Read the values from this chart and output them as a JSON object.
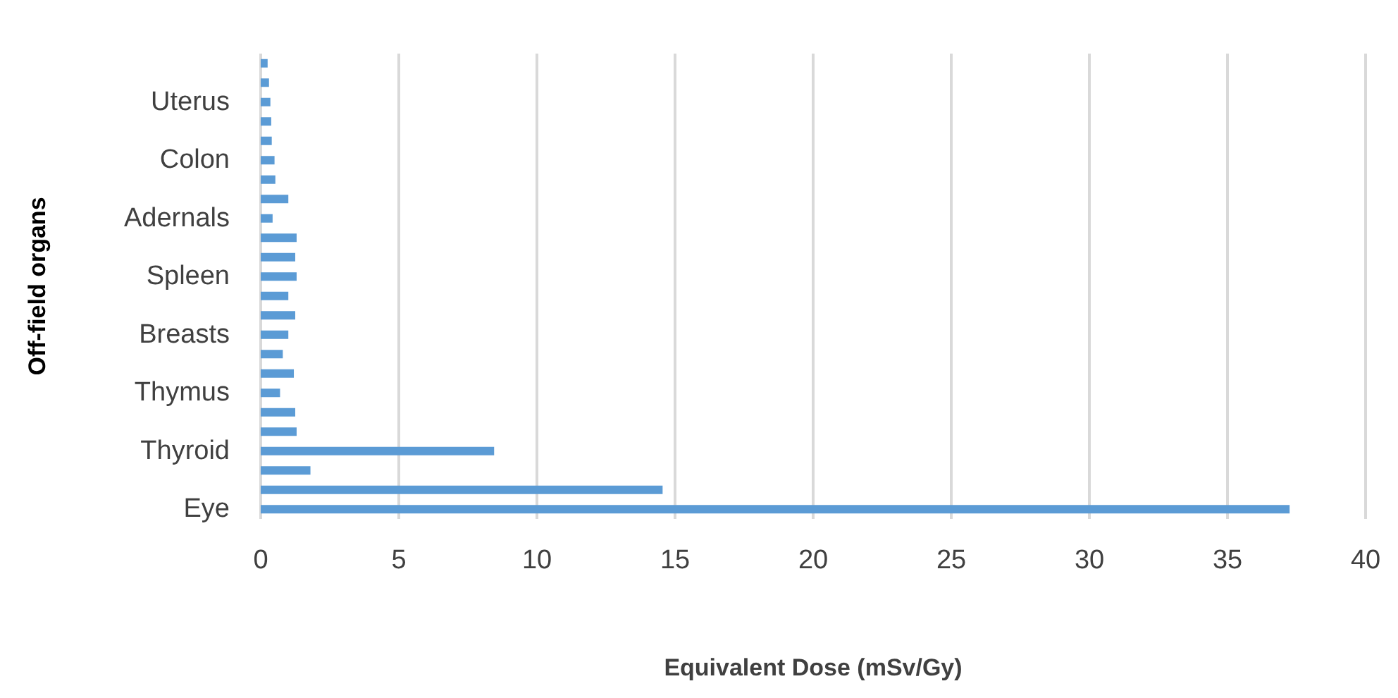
{
  "chart_data": {
    "type": "bar",
    "orientation": "horizontal",
    "xlabel": "Equivalent Dose (mSv/Gy)",
    "ylabel": "Off-field organs",
    "categories": [
      null,
      null,
      "Uterus",
      null,
      null,
      "Colon",
      null,
      null,
      "Adernals",
      null,
      null,
      "Spleen",
      null,
      null,
      "Breasts",
      null,
      null,
      "Thymus",
      null,
      null,
      "Thyroid",
      null,
      null,
      "Eye"
    ],
    "values": [
      0.25,
      0.3,
      0.35,
      0.38,
      0.4,
      0.5,
      0.53,
      1.0,
      0.43,
      1.3,
      1.25,
      1.3,
      1.0,
      1.25,
      1.0,
      0.8,
      1.2,
      0.7,
      1.25,
      1.3,
      8.45,
      1.8,
      14.55,
      37.25
    ],
    "color": "#5b9bd5",
    "xlim": [
      0,
      40
    ],
    "xticks": [
      0,
      5,
      10,
      15,
      20,
      25,
      30,
      35,
      40
    ],
    "grid": "x"
  }
}
